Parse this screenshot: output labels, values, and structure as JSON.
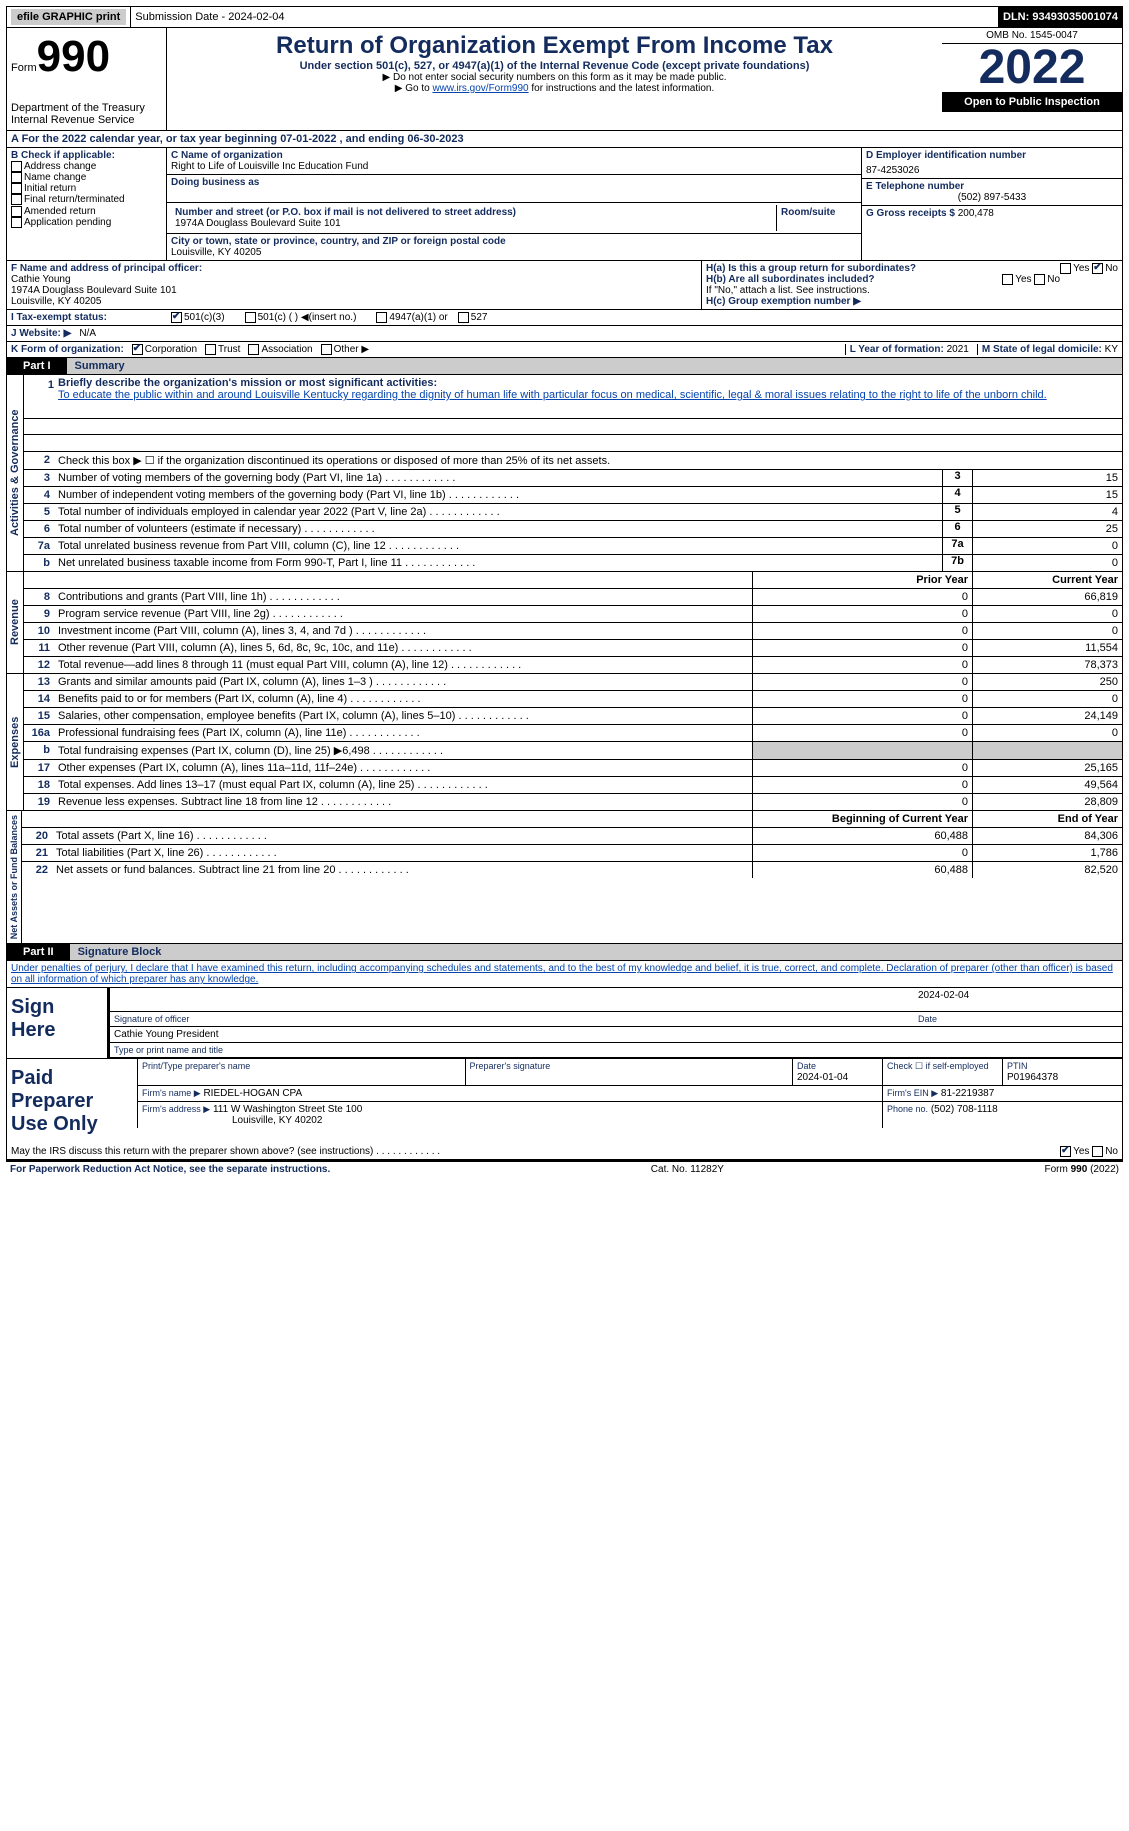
{
  "header": {
    "efile": "efile GRAPHIC print",
    "submission_label": "Submission Date - 2024-02-04",
    "dln_label": "DLN: 93493035001074"
  },
  "form": {
    "word": "Form",
    "number": "990",
    "dept": "Department of the Treasury",
    "irs": "Internal Revenue Service",
    "title": "Return of Organization Exempt From Income Tax",
    "subtitle": "Under section 501(c), 527, or 4947(a)(1) of the Internal Revenue Code (except private foundations)",
    "note1": "▶ Do not enter social security numbers on this form as it may be made public.",
    "note2_pre": "▶ Go to ",
    "note2_link": "www.irs.gov/Form990",
    "note2_post": " for instructions and the latest information.",
    "omb": "OMB No. 1545-0047",
    "year": "2022",
    "open": "Open to Public Inspection"
  },
  "tax_year": "A For the 2022 calendar year, or tax year beginning 07-01-2022    , and ending 06-30-2023",
  "boxB": {
    "label": "B Check if applicable:",
    "items": [
      "Address change",
      "Name change",
      "Initial return",
      "Final return/terminated",
      "Amended return",
      "Application pending"
    ]
  },
  "boxC": {
    "name_label": "C Name of organization",
    "name": "Right to Life of Louisville Inc Education Fund",
    "dba_label": "Doing business as",
    "addr_label": "Number and street (or P.O. box if mail is not delivered to street address)",
    "addr": "1974A Douglass Boulevard Suite 101",
    "room_label": "Room/suite",
    "city_label": "City or town, state or province, country, and ZIP or foreign postal code",
    "city": "Louisville, KY  40205"
  },
  "boxD": {
    "label": "D Employer identification number",
    "val": "87-4253026"
  },
  "boxE": {
    "label": "E Telephone number",
    "val": "(502) 897-5433"
  },
  "boxG": {
    "label": "G Gross receipts $ ",
    "val": "200,478"
  },
  "boxF": {
    "label": "F  Name and address of principal officer:",
    "name": "Cathie Young",
    "addr": "1974A Douglass Boulevard Suite 101",
    "city": "Louisville, KY  40205"
  },
  "boxH": {
    "a": "H(a)  Is this a group return for subordinates?",
    "b": "H(b)  Are all subordinates included?",
    "note": "If \"No,\" attach a list. See instructions.",
    "c": "H(c)  Group exemption number ▶",
    "yes": "Yes",
    "no": "No"
  },
  "boxI": {
    "label": "I   Tax-exempt status:",
    "c3": "501(c)(3)",
    "c": "501(c) (  ) ◀(insert no.)",
    "a1": "4947(a)(1) or",
    "527": "527"
  },
  "boxJ": {
    "label": "J   Website: ▶",
    "val": "N/A"
  },
  "boxK": {
    "label": "K Form of organization:",
    "corp": "Corporation",
    "trust": "Trust",
    "assoc": "Association",
    "other": "Other ▶"
  },
  "boxL": {
    "label": "L Year of formation: ",
    "val": "2021"
  },
  "boxM": {
    "label": "M State of legal domicile: ",
    "val": "KY"
  },
  "part1": {
    "num": "Part I",
    "title": "Summary"
  },
  "summary": {
    "gov_label": "Activities & Governance",
    "rev_label": "Revenue",
    "exp_label": "Expenses",
    "net_label": "Net Assets or Fund Balances",
    "line1_label": "Briefly describe the organization's mission or most significant activities:",
    "mission": "To educate the public within and around Louisville Kentucky regarding the dignity of human life with particular focus on medical, scientific, legal & moral issues relating to the right to life of the unborn child.",
    "line2": "Check this box ▶ ☐ if the organization discontinued its operations or disposed of more than 25% of its net assets.",
    "prior": "Prior Year",
    "current": "Current Year",
    "begin": "Beginning of Current Year",
    "end": "End of Year",
    "rows_gov": [
      {
        "n": "3",
        "l": "Number of voting members of the governing body (Part VI, line 1a)",
        "nc": "3",
        "v": "15"
      },
      {
        "n": "4",
        "l": "Number of independent voting members of the governing body (Part VI, line 1b)",
        "nc": "4",
        "v": "15"
      },
      {
        "n": "5",
        "l": "Total number of individuals employed in calendar year 2022 (Part V, line 2a)",
        "nc": "5",
        "v": "4"
      },
      {
        "n": "6",
        "l": "Total number of volunteers (estimate if necessary)",
        "nc": "6",
        "v": "25"
      },
      {
        "n": "7a",
        "l": "Total unrelated business revenue from Part VIII, column (C), line 12",
        "nc": "7a",
        "v": "0"
      },
      {
        "n": "b",
        "l": "Net unrelated business taxable income from Form 990-T, Part I, line 11",
        "nc": "7b",
        "v": "0"
      }
    ],
    "rows_rev": [
      {
        "n": "8",
        "l": "Contributions and grants (Part VIII, line 1h)",
        "p": "0",
        "c": "66,819"
      },
      {
        "n": "9",
        "l": "Program service revenue (Part VIII, line 2g)",
        "p": "0",
        "c": "0"
      },
      {
        "n": "10",
        "l": "Investment income (Part VIII, column (A), lines 3, 4, and 7d )",
        "p": "0",
        "c": "0"
      },
      {
        "n": "11",
        "l": "Other revenue (Part VIII, column (A), lines 5, 6d, 8c, 9c, 10c, and 11e)",
        "p": "0",
        "c": "11,554"
      },
      {
        "n": "12",
        "l": "Total revenue—add lines 8 through 11 (must equal Part VIII, column (A), line 12)",
        "p": "0",
        "c": "78,373"
      }
    ],
    "rows_exp": [
      {
        "n": "13",
        "l": "Grants and similar amounts paid (Part IX, column (A), lines 1–3 )",
        "p": "0",
        "c": "250"
      },
      {
        "n": "14",
        "l": "Benefits paid to or for members (Part IX, column (A), line 4)",
        "p": "0",
        "c": "0"
      },
      {
        "n": "15",
        "l": "Salaries, other compensation, employee benefits (Part IX, column (A), lines 5–10)",
        "p": "0",
        "c": "24,149"
      },
      {
        "n": "16a",
        "l": "Professional fundraising fees (Part IX, column (A), line 11e)",
        "p": "0",
        "c": "0"
      },
      {
        "n": "b",
        "l": "Total fundraising expenses (Part IX, column (D), line 25) ▶6,498",
        "p": "",
        "c": "",
        "gray": true
      },
      {
        "n": "17",
        "l": "Other expenses (Part IX, column (A), lines 11a–11d, 11f–24e)",
        "p": "0",
        "c": "25,165"
      },
      {
        "n": "18",
        "l": "Total expenses. Add lines 13–17 (must equal Part IX, column (A), line 25)",
        "p": "0",
        "c": "49,564"
      },
      {
        "n": "19",
        "l": "Revenue less expenses. Subtract line 18 from line 12",
        "p": "0",
        "c": "28,809"
      }
    ],
    "rows_net": [
      {
        "n": "20",
        "l": "Total assets (Part X, line 16)",
        "p": "60,488",
        "c": "84,306"
      },
      {
        "n": "21",
        "l": "Total liabilities (Part X, line 26)",
        "p": "0",
        "c": "1,786"
      },
      {
        "n": "22",
        "l": "Net assets or fund balances. Subtract line 21 from line 20",
        "p": "60,488",
        "c": "82,520"
      }
    ]
  },
  "part2": {
    "num": "Part II",
    "title": "Signature Block"
  },
  "declare": "Under penalties of perjury, I declare that I have examined this return, including accompanying schedules and statements, and to the best of my knowledge and belief, it is true, correct, and complete. Declaration of preparer (other than officer) is based on all information of which preparer has any knowledge.",
  "sign": {
    "label": "Sign Here",
    "sig_officer": "Signature of officer",
    "date": "2024-02-04",
    "date_label": "Date",
    "name": "Cathie Young  President",
    "name_label": "Type or print name and title"
  },
  "prep": {
    "label": "Paid Preparer Use Only",
    "print_label": "Print/Type preparer's name",
    "sig_label": "Preparer's signature",
    "date_label": "Date",
    "date": "2024-01-04",
    "check_label": "Check ☐ if self-employed",
    "ptin_label": "PTIN",
    "ptin": "P01964378",
    "firm_name_label": "Firm's name     ▶",
    "firm_name": "RIEDEL-HOGAN CPA",
    "firm_ein_label": "Firm's EIN ▶",
    "firm_ein": "81-2219387",
    "firm_addr_label": "Firm's address ▶",
    "firm_addr": "111 W Washington Street Ste 100",
    "firm_city": "Louisville, KY  40202",
    "phone_label": "Phone no.",
    "phone": "(502) 708-1118"
  },
  "discuss": {
    "label": "May the IRS discuss this return with the preparer shown above? (see instructions)",
    "yes": "Yes",
    "no": "No"
  },
  "footer": {
    "left": "For Paperwork Reduction Act Notice, see the separate instructions.",
    "mid": "Cat. No. 11282Y",
    "right": "Form 990 (2022)"
  }
}
